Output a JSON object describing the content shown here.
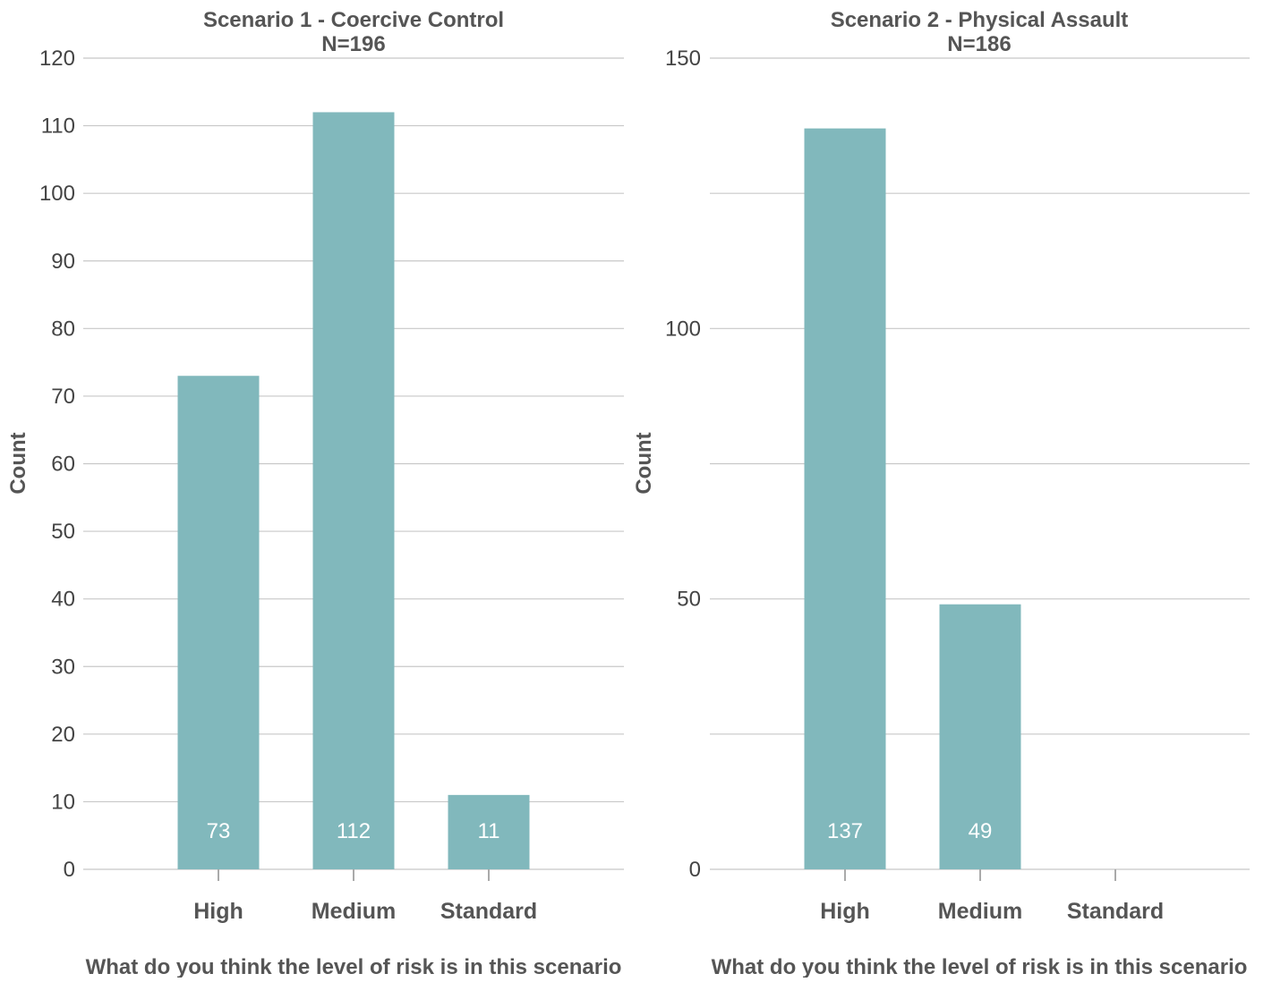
{
  "chart_data": [
    {
      "type": "bar",
      "title": "Scenario 1 - Coercive Control",
      "subtitle": "N=196",
      "xlabel": "What do you think the level of risk is in this scenario",
      "ylabel": "Count",
      "categories": [
        "High",
        "Medium",
        "Standard"
      ],
      "values": [
        73,
        112,
        11
      ],
      "value_labels": [
        "73",
        "112",
        "11"
      ],
      "ylim": [
        0,
        120
      ],
      "yticks": [
        0,
        10,
        20,
        30,
        40,
        50,
        60,
        70,
        80,
        90,
        100,
        110,
        120
      ],
      "ytick_labels": [
        "0",
        "10",
        "20",
        "30",
        "40",
        "50",
        "60",
        "70",
        "80",
        "90",
        "100",
        "110",
        "120"
      ],
      "grid": true,
      "bar_color": "#81b8bc"
    },
    {
      "type": "bar",
      "title": "Scenario 2 - Physical Assault",
      "subtitle": "N=186",
      "xlabel": "What do you think the level of risk is in this scenario",
      "ylabel": "Count",
      "categories": [
        "High",
        "Medium",
        "Standard"
      ],
      "values": [
        137,
        49,
        0
      ],
      "value_labels": [
        "137",
        "49",
        ""
      ],
      "ylim": [
        0,
        150
      ],
      "yticks": [
        0,
        25,
        50,
        75,
        100,
        125,
        150
      ],
      "ytick_labels": [
        "0",
        "",
        "50",
        "",
        "100",
        "",
        "150"
      ],
      "grid": true,
      "bar_color": "#81b8bc"
    }
  ]
}
